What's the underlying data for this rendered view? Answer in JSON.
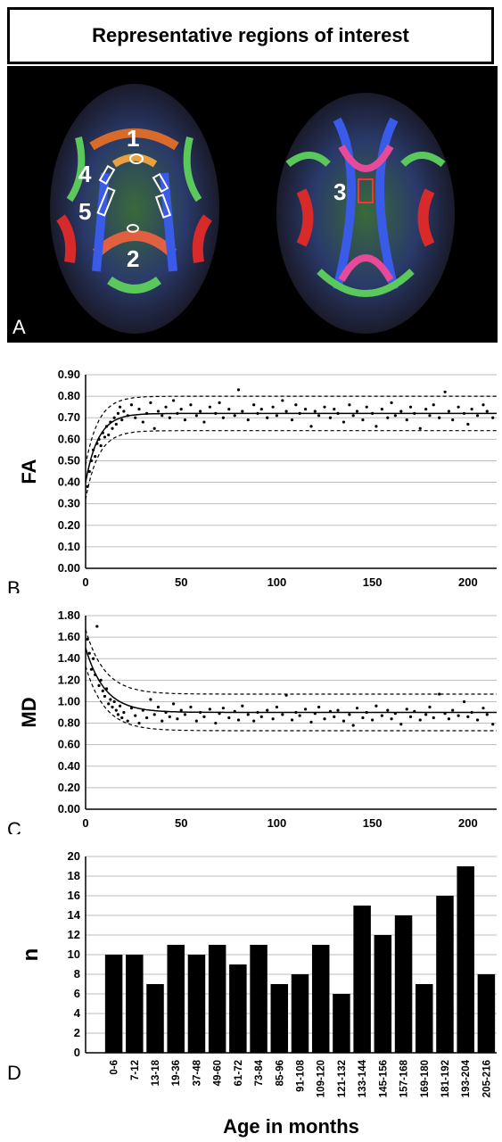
{
  "panelA": {
    "title": "Representative regions of interest",
    "letter": "A",
    "roi_labels": [
      "1",
      "2",
      "3",
      "4",
      "5"
    ],
    "colors": {
      "roi_outline": "#ffffff",
      "roi3_outline": "#ff3030",
      "background": "#000000"
    }
  },
  "chart_data": [
    {
      "type": "scatter",
      "panel": "B",
      "ylabel": "FA",
      "xlabel": "",
      "xlim": [
        0,
        215
      ],
      "ylim": [
        0,
        0.9
      ],
      "yticks": [
        "0.00",
        "0.10",
        "0.20",
        "0.30",
        "0.40",
        "0.50",
        "0.60",
        "0.70",
        "0.80",
        "0.90"
      ],
      "xticks": [
        "0",
        "50",
        "100",
        "150",
        "200"
      ],
      "grid": true,
      "fit": {
        "asymptote": 0.72,
        "start": 0.4,
        "rate": 0.15,
        "band": 0.08
      },
      "points": [
        [
          1,
          0.38
        ],
        [
          2,
          0.45
        ],
        [
          3,
          0.5
        ],
        [
          4,
          0.55
        ],
        [
          5,
          0.52
        ],
        [
          6,
          0.58
        ],
        [
          7,
          0.6
        ],
        [
          8,
          0.57
        ],
        [
          9,
          0.63
        ],
        [
          10,
          0.61
        ],
        [
          11,
          0.66
        ],
        [
          12,
          0.62
        ],
        [
          13,
          0.68
        ],
        [
          14,
          0.65
        ],
        [
          15,
          0.7
        ],
        [
          16,
          0.67
        ],
        [
          17,
          0.72
        ],
        [
          18,
          0.75
        ],
        [
          19,
          0.69
        ],
        [
          20,
          0.73
        ],
        [
          22,
          0.71
        ],
        [
          24,
          0.76
        ],
        [
          26,
          0.7
        ],
        [
          28,
          0.74
        ],
        [
          30,
          0.68
        ],
        [
          32,
          0.72
        ],
        [
          34,
          0.77
        ],
        [
          36,
          0.65
        ],
        [
          38,
          0.73
        ],
        [
          40,
          0.71
        ],
        [
          42,
          0.75
        ],
        [
          44,
          0.7
        ],
        [
          46,
          0.78
        ],
        [
          48,
          0.72
        ],
        [
          50,
          0.74
        ],
        [
          52,
          0.69
        ],
        [
          55,
          0.76
        ],
        [
          58,
          0.71
        ],
        [
          60,
          0.73
        ],
        [
          62,
          0.68
        ],
        [
          65,
          0.75
        ],
        [
          68,
          0.72
        ],
        [
          70,
          0.77
        ],
        [
          72,
          0.7
        ],
        [
          75,
          0.74
        ],
        [
          78,
          0.71
        ],
        [
          80,
          0.83
        ],
        [
          82,
          0.73
        ],
        [
          85,
          0.69
        ],
        [
          88,
          0.76
        ],
        [
          90,
          0.72
        ],
        [
          92,
          0.74
        ],
        [
          95,
          0.7
        ],
        [
          98,
          0.75
        ],
        [
          100,
          0.71
        ],
        [
          103,
          0.78
        ],
        [
          105,
          0.73
        ],
        [
          108,
          0.69
        ],
        [
          110,
          0.76
        ],
        [
          112,
          0.72
        ],
        [
          115,
          0.74
        ],
        [
          118,
          0.66
        ],
        [
          120,
          0.73
        ],
        [
          122,
          0.71
        ],
        [
          125,
          0.75
        ],
        [
          128,
          0.7
        ],
        [
          130,
          0.74
        ],
        [
          132,
          0.72
        ],
        [
          135,
          0.68
        ],
        [
          138,
          0.76
        ],
        [
          140,
          0.71
        ],
        [
          142,
          0.73
        ],
        [
          145,
          0.69
        ],
        [
          147,
          0.75
        ],
        [
          150,
          0.72
        ],
        [
          152,
          0.66
        ],
        [
          155,
          0.74
        ],
        [
          158,
          0.7
        ],
        [
          160,
          0.77
        ],
        [
          162,
          0.71
        ],
        [
          165,
          0.73
        ],
        [
          168,
          0.69
        ],
        [
          170,
          0.75
        ],
        [
          172,
          0.72
        ],
        [
          175,
          0.65
        ],
        [
          178,
          0.74
        ],
        [
          180,
          0.71
        ],
        [
          182,
          0.76
        ],
        [
          185,
          0.7
        ],
        [
          188,
          0.82
        ],
        [
          190,
          0.73
        ],
        [
          192,
          0.69
        ],
        [
          195,
          0.75
        ],
        [
          198,
          0.72
        ],
        [
          200,
          0.67
        ],
        [
          202,
          0.74
        ],
        [
          205,
          0.71
        ],
        [
          208,
          0.76
        ],
        [
          210,
          0.73
        ],
        [
          213,
          0.7
        ]
      ]
    },
    {
      "type": "scatter",
      "panel": "C",
      "ylabel": "MD",
      "xlabel": "",
      "xlim": [
        0,
        215
      ],
      "ylim": [
        0,
        1.8
      ],
      "yticks": [
        "0.00",
        "0.20",
        "0.40",
        "0.60",
        "0.80",
        "1.00",
        "1.20",
        "1.40",
        "1.60",
        "1.80"
      ],
      "xticks": [
        "0",
        "50",
        "100",
        "150",
        "200"
      ],
      "grid": true,
      "fit": {
        "asymptote": 0.9,
        "start": 1.5,
        "rate": 0.1,
        "band": 0.17
      },
      "points": [
        [
          1,
          1.58
        ],
        [
          2,
          1.45
        ],
        [
          3,
          1.3
        ],
        [
          4,
          1.4
        ],
        [
          5,
          1.25
        ],
        [
          6,
          1.7
        ],
        [
          7,
          1.15
        ],
        [
          8,
          1.2
        ],
        [
          9,
          1.1
        ],
        [
          10,
          1.05
        ],
        [
          11,
          1.12
        ],
        [
          12,
          0.98
        ],
        [
          13,
          1.02
        ],
        [
          14,
          0.95
        ],
        [
          15,
          1.0
        ],
        [
          16,
          0.92
        ],
        [
          17,
          0.88
        ],
        [
          18,
          0.96
        ],
        [
          19,
          0.85
        ],
        [
          20,
          0.9
        ],
        [
          22,
          0.82
        ],
        [
          24,
          0.94
        ],
        [
          26,
          0.87
        ],
        [
          28,
          0.8
        ],
        [
          30,
          0.92
        ],
        [
          32,
          0.85
        ],
        [
          34,
          1.02
        ],
        [
          36,
          0.88
        ],
        [
          38,
          0.95
        ],
        [
          40,
          0.82
        ],
        [
          42,
          0.9
        ],
        [
          44,
          0.86
        ],
        [
          46,
          0.98
        ],
        [
          48,
          0.84
        ],
        [
          50,
          0.92
        ],
        [
          52,
          0.88
        ],
        [
          55,
          0.95
        ],
        [
          58,
          0.82
        ],
        [
          60,
          0.9
        ],
        [
          62,
          0.86
        ],
        [
          65,
          0.93
        ],
        [
          68,
          0.8
        ],
        [
          70,
          0.89
        ],
        [
          72,
          0.94
        ],
        [
          75,
          0.85
        ],
        [
          78,
          0.91
        ],
        [
          80,
          0.83
        ],
        [
          82,
          0.96
        ],
        [
          85,
          0.88
        ],
        [
          88,
          0.82
        ],
        [
          90,
          0.9
        ],
        [
          92,
          0.86
        ],
        [
          95,
          0.92
        ],
        [
          98,
          0.84
        ],
        [
          100,
          0.95
        ],
        [
          103,
          0.88
        ],
        [
          105,
          1.06
        ],
        [
          108,
          0.83
        ],
        [
          110,
          0.9
        ],
        [
          112,
          0.87
        ],
        [
          115,
          0.93
        ],
        [
          118,
          0.81
        ],
        [
          120,
          0.89
        ],
        [
          122,
          0.95
        ],
        [
          125,
          0.84
        ],
        [
          128,
          0.91
        ],
        [
          130,
          0.86
        ],
        [
          132,
          0.92
        ],
        [
          135,
          0.82
        ],
        [
          138,
          0.88
        ],
        [
          140,
          0.78
        ],
        [
          142,
          0.94
        ],
        [
          145,
          0.85
        ],
        [
          147,
          0.9
        ],
        [
          150,
          0.83
        ],
        [
          152,
          0.96
        ],
        [
          155,
          0.87
        ],
        [
          158,
          0.92
        ],
        [
          160,
          0.84
        ],
        [
          162,
          0.89
        ],
        [
          165,
          0.79
        ],
        [
          168,
          0.93
        ],
        [
          170,
          0.86
        ],
        [
          172,
          0.91
        ],
        [
          175,
          0.83
        ],
        [
          178,
          0.88
        ],
        [
          180,
          0.95
        ],
        [
          182,
          0.85
        ],
        [
          185,
          1.07
        ],
        [
          188,
          0.89
        ],
        [
          190,
          0.84
        ],
        [
          192,
          0.92
        ],
        [
          195,
          0.87
        ],
        [
          198,
          1.0
        ],
        [
          200,
          0.86
        ],
        [
          202,
          0.9
        ],
        [
          205,
          0.83
        ],
        [
          208,
          0.94
        ],
        [
          210,
          0.88
        ],
        [
          213,
          0.79
        ]
      ]
    },
    {
      "type": "bar",
      "panel": "D",
      "ylabel": "n",
      "xlabel": "Age in months",
      "ylim": [
        0,
        20
      ],
      "yticks": [
        "0",
        "2",
        "4",
        "6",
        "8",
        "10",
        "12",
        "14",
        "16",
        "18",
        "20"
      ],
      "grid": true,
      "categories": [
        "0-6",
        "7-12",
        "13-18",
        "19-36",
        "37-48",
        "49-60",
        "61-72",
        "73-84",
        "85-96",
        "91-108",
        "109-120",
        "121-132",
        "133-144",
        "145-156",
        "157-168",
        "169-180",
        "181-192",
        "193-204",
        "205-216"
      ],
      "values": [
        10,
        10,
        7,
        11,
        10,
        11,
        9,
        11,
        7,
        8,
        11,
        6,
        15,
        12,
        14,
        7,
        16,
        19,
        8
      ]
    }
  ],
  "panel_letters": {
    "B": "B",
    "C": "C",
    "D": "D"
  }
}
